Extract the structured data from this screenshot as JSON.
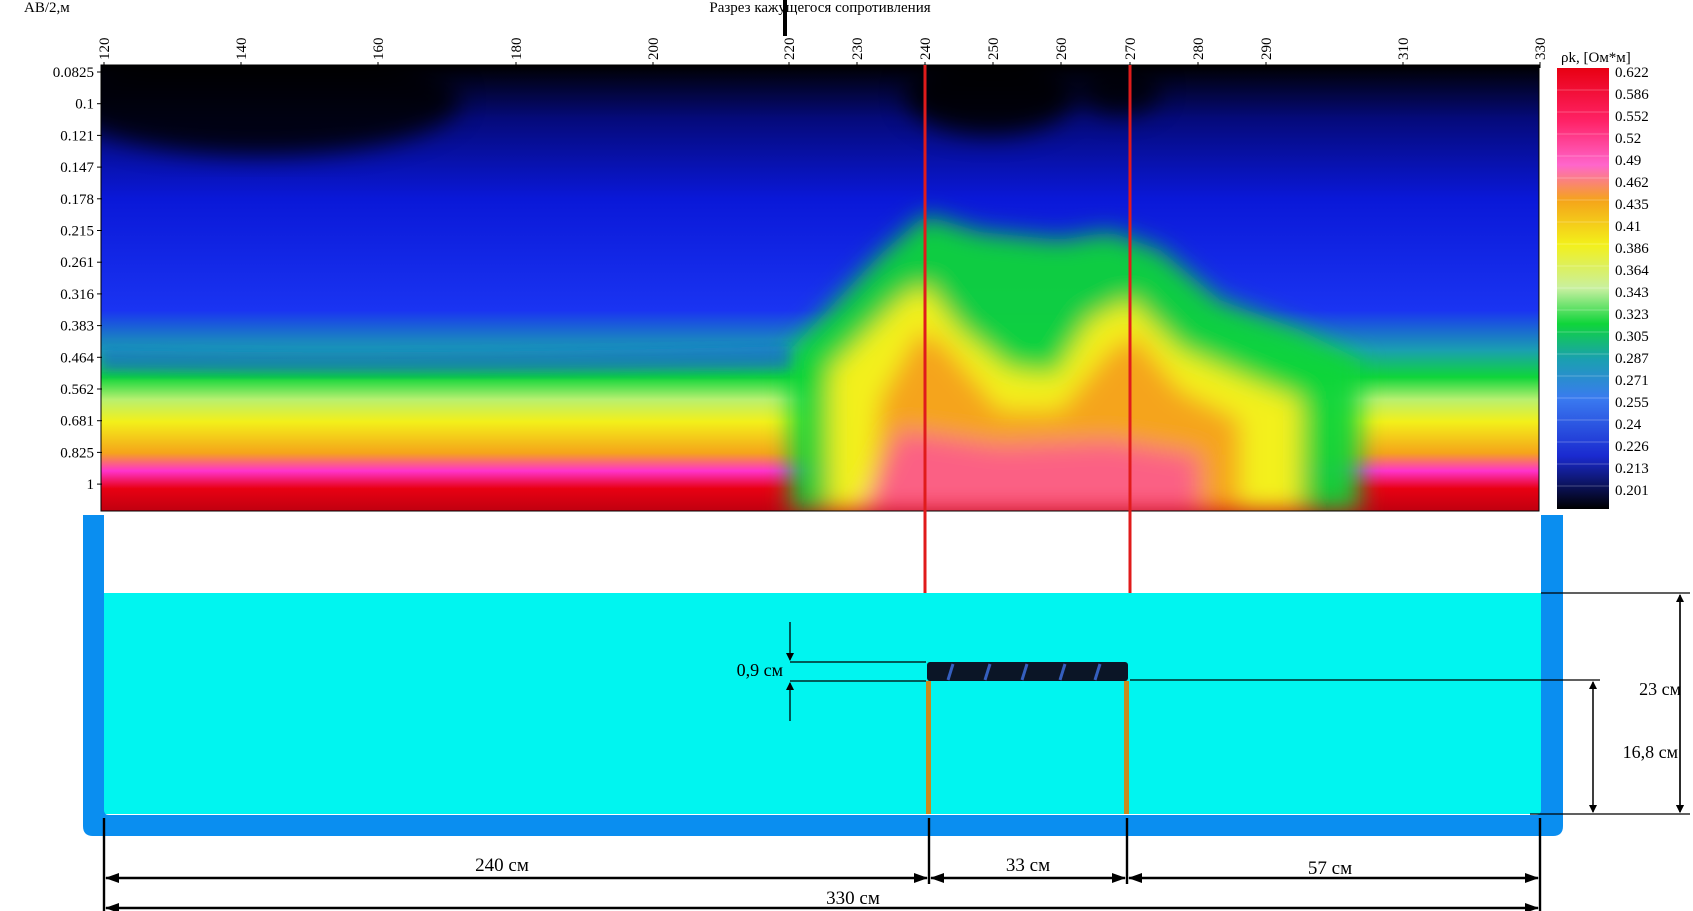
{
  "section": {
    "title": "Разрез кажущегося сопротивления",
    "y_axis_label": "AB/2,м",
    "colorbar_label": "ρk, [Ом*м]",
    "x_ticks": [
      "120",
      "140",
      "160",
      "180",
      "200",
      "220",
      "230",
      "240",
      "250",
      "260",
      "270",
      "280",
      "290",
      "310",
      "330"
    ],
    "y_ticks": [
      "0.0825",
      "0.1",
      "0.121",
      "0.147",
      "0.178",
      "0.215",
      "0.261",
      "0.316",
      "0.383",
      "0.464",
      "0.562",
      "0.681",
      "0.825",
      "1"
    ],
    "colorbar_ticks": [
      "0.622",
      "0.586",
      "0.552",
      "0.52",
      "0.49",
      "0.462",
      "0.435",
      "0.41",
      "0.386",
      "0.364",
      "0.343",
      "0.323",
      "0.305",
      "0.287",
      "0.271",
      "0.255",
      "0.24",
      "0.226",
      "0.213",
      "0.201"
    ],
    "colors": {
      "low": "#000000",
      "blue": "#0a18d8",
      "green": "#0fd53a",
      "yellow": "#f3f01a",
      "orange": "#f5a41a",
      "magenta": "#ff33cc",
      "high": "#e80012",
      "marker_line": "#e01b1b"
    }
  },
  "tank": {
    "colors": {
      "wall": "#0a8ef0",
      "water": "#00f5f0",
      "object": "#0b1526",
      "support": "#c88a1e"
    },
    "labels": {
      "thickness": "0,9 см",
      "water_depth": "23 см",
      "object_depth": "16,8 см",
      "left_distance": "240 см",
      "object_width": "33 см",
      "right_distance": "57 см",
      "total_length": "330 см"
    }
  }
}
